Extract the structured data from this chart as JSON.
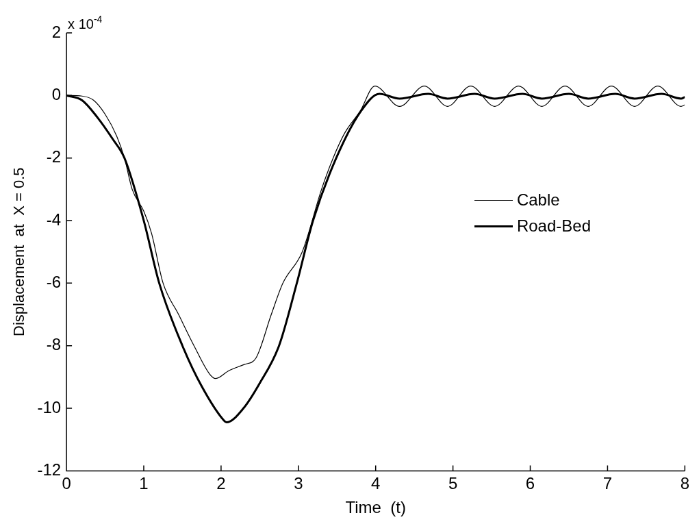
{
  "chart_data": {
    "type": "line",
    "xlabel": "Time  (t)",
    "ylabel": "Displacement  at  X = 0.5",
    "annotations": [
      "x 10$^{-4}$"
    ],
    "xlim": [
      0,
      8
    ],
    "xticks": [
      0,
      1,
      2,
      3,
      4,
      5,
      6,
      7,
      8
    ],
    "ylim": [
      -12,
      2
    ],
    "yticks": [
      -12,
      -10,
      -8,
      -6,
      -4,
      -2,
      0,
      2
    ],
    "grid": false,
    "legend": "right",
    "marker": "none",
    "line_style": "solid",
    "series": [
      {
        "name": "Cable",
        "color": "#000000",
        "x": [
          0,
          0.2,
          0.35,
          0.5,
          0.65,
          0.75,
          0.85,
          1.0,
          1.1,
          1.25,
          1.45,
          1.65,
          1.85,
          1.93,
          2.1,
          2.3,
          2.45,
          2.65,
          2.8,
          3.05,
          3.3,
          3.45,
          3.6,
          3.8,
          3.99,
          4.31,
          4.63,
          4.93,
          5.23,
          5.54,
          5.85,
          6.15,
          6.45,
          6.75,
          7.05,
          7.35,
          7.65,
          7.95,
          8.0
        ],
        "values": [
          0,
          -0.02,
          -0.15,
          -0.6,
          -1.3,
          -2,
          -3,
          -3.7,
          -4.4,
          -6,
          -7,
          -8,
          -8.9,
          -9.05,
          -8.8,
          -8.6,
          -8.4,
          -7,
          -6,
          -5,
          -3,
          -2,
          -1.2,
          -0.5,
          0.3,
          -0.35,
          0.3,
          -0.35,
          0.3,
          -0.35,
          0.3,
          -0.35,
          0.3,
          -0.35,
          0.3,
          -0.35,
          0.3,
          -0.35,
          -0.3
        ]
      },
      {
        "name": "Road-Bed",
        "color": "#000000",
        "x": [
          0,
          0.2,
          0.4,
          0.6,
          0.75,
          1.0,
          1.2,
          1.5,
          1.75,
          2.04,
          2.07,
          2.29,
          2.5,
          2.75,
          2.98,
          3.19,
          3.49,
          3.81,
          4.05,
          4.31,
          4.68,
          4.93,
          5.28,
          5.54,
          5.9,
          6.15,
          6.5,
          6.75,
          7.1,
          7.35,
          7.7,
          7.95,
          8.0
        ],
        "values": [
          0,
          -0.15,
          -0.7,
          -1.4,
          -2,
          -4,
          -6,
          -8,
          -9.3,
          -10.4,
          -10.45,
          -10,
          -9.2,
          -8,
          -6,
          -4,
          -2,
          -0.5,
          0.05,
          -0.1,
          0.05,
          -0.1,
          0.05,
          -0.1,
          0.05,
          -0.1,
          0.05,
          -0.1,
          0.05,
          -0.1,
          0.05,
          -0.1,
          -0.05
        ]
      }
    ]
  }
}
